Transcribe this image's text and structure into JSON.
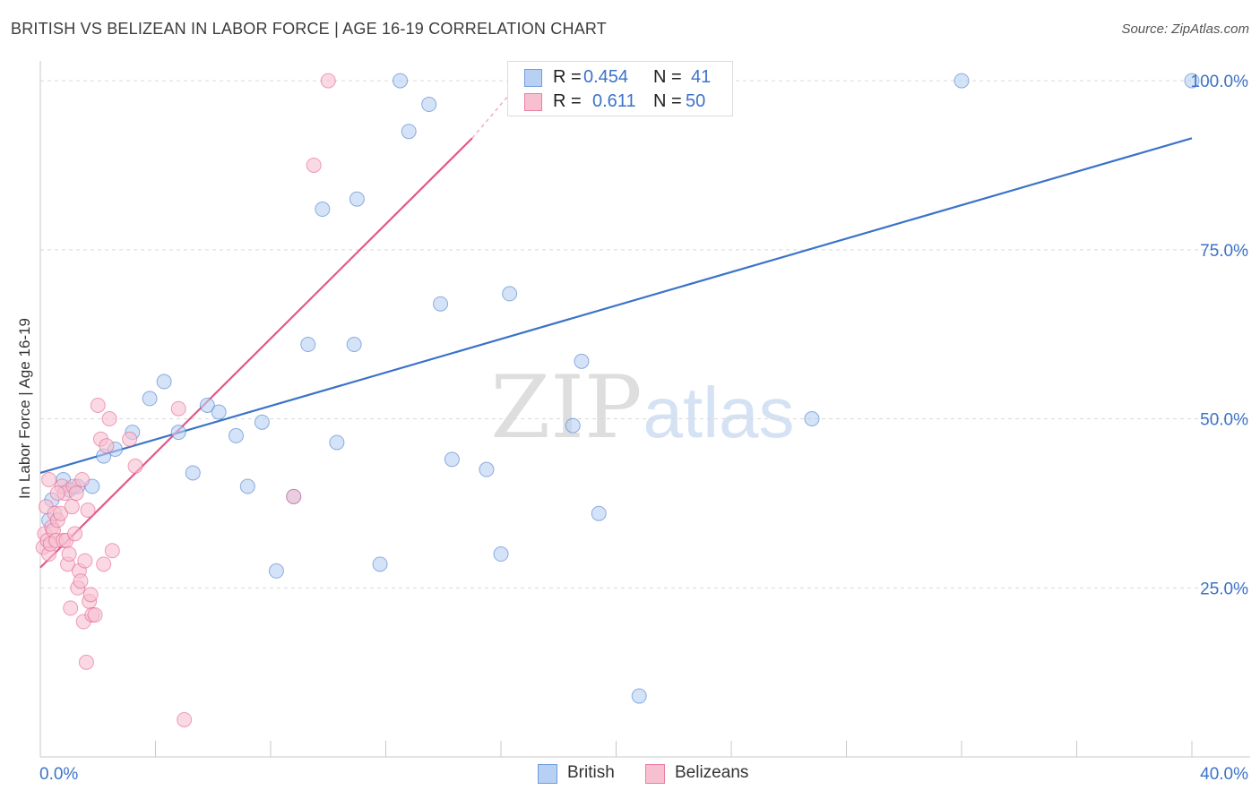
{
  "title": "BRITISH VS BELIZEAN IN LABOR FORCE | AGE 16-19 CORRELATION CHART",
  "source": "Source: ZipAtlas.com",
  "watermark": {
    "zip": "ZIP",
    "atlas": "atlas"
  },
  "legend": {
    "r_label": "R =",
    "n_label": "N =",
    "rows": [
      {
        "r": "0.454",
        "n": "41",
        "fill": "#b8d0f2",
        "stroke": "#6f9de0"
      },
      {
        "r": "0.611",
        "n": "50",
        "fill": "#f7c0d1",
        "stroke": "#ea7fa2"
      }
    ]
  },
  "bottom_legend": [
    {
      "label": "British",
      "fill": "#b8d0f2",
      "stroke": "#6f9de0"
    },
    {
      "label": "Belizeans",
      "fill": "#f7c0d1",
      "stroke": "#ea7fa2"
    }
  ],
  "chart_data": {
    "type": "scatter",
    "title": "BRITISH VS BELIZEAN IN LABOR FORCE | AGE 16-19 CORRELATION CHART",
    "xlabel": "",
    "ylabel": "In Labor Force | Age 16-19",
    "xlim": [
      0,
      40
    ],
    "ylim": [
      0,
      102
    ],
    "x_tick_labels": [
      "0.0%",
      "40.0%"
    ],
    "y_ticks": [
      25,
      50,
      75,
      100
    ],
    "y_tick_labels": [
      "25.0%",
      "50.0%",
      "75.0%",
      "100.0%"
    ],
    "grid": true,
    "colors": {
      "british": "#3b73c8",
      "belizeans": "#e2588a",
      "tick_label": "#3b73c8"
    },
    "series": [
      {
        "name": "British",
        "color": "#3b73c8",
        "fill": "#b8d0f2",
        "points": [
          [
            0.4,
            38.0
          ],
          [
            0.8,
            41.0
          ],
          [
            1.3,
            40.0
          ],
          [
            1.8,
            40.0
          ],
          [
            2.2,
            44.5
          ],
          [
            3.2,
            48.0
          ],
          [
            3.8,
            53.0
          ],
          [
            4.3,
            55.5
          ],
          [
            4.8,
            48.0
          ],
          [
            5.3,
            42.0
          ],
          [
            5.8,
            52.0
          ],
          [
            6.2,
            51.0
          ],
          [
            6.8,
            47.5
          ],
          [
            7.2,
            40.0
          ],
          [
            7.7,
            49.5
          ],
          [
            8.2,
            27.5
          ],
          [
            8.8,
            38.5
          ],
          [
            9.3,
            61.0
          ],
          [
            9.8,
            81.0
          ],
          [
            10.3,
            46.5
          ],
          [
            10.9,
            61.0
          ],
          [
            11.0,
            82.5
          ],
          [
            11.8,
            28.5
          ],
          [
            12.5,
            100.0
          ],
          [
            12.8,
            92.5
          ],
          [
            13.5,
            96.5
          ],
          [
            13.9,
            67.0
          ],
          [
            14.3,
            44.0
          ],
          [
            15.5,
            42.5
          ],
          [
            16.0,
            30.0
          ],
          [
            16.3,
            68.5
          ],
          [
            18.5,
            49.0
          ],
          [
            18.8,
            58.5
          ],
          [
            19.4,
            36.0
          ],
          [
            20.8,
            9.0
          ],
          [
            26.8,
            50.0
          ],
          [
            32.0,
            100.0
          ],
          [
            40.0,
            100.0
          ],
          [
            0.3,
            35.0
          ],
          [
            1.0,
            39.5
          ],
          [
            2.6,
            45.5
          ]
        ],
        "trend": {
          "x0": 0,
          "y0": 42.0,
          "x1": 40,
          "y1": 91.5
        }
      },
      {
        "name": "Belizeans",
        "color": "#e2588a",
        "fill": "#f7c0d1",
        "points": [
          [
            0.1,
            31.0
          ],
          [
            0.15,
            33.0
          ],
          [
            0.2,
            37.0
          ],
          [
            0.25,
            32.0
          ],
          [
            0.3,
            30.0
          ],
          [
            0.35,
            31.5
          ],
          [
            0.4,
            34.0
          ],
          [
            0.45,
            33.5
          ],
          [
            0.5,
            36.0
          ],
          [
            0.55,
            32.0
          ],
          [
            0.6,
            35.0
          ],
          [
            0.7,
            36.0
          ],
          [
            0.75,
            40.0
          ],
          [
            0.8,
            32.0
          ],
          [
            0.85,
            39.0
          ],
          [
            0.9,
            32.0
          ],
          [
            0.95,
            28.5
          ],
          [
            1.0,
            30.0
          ],
          [
            1.05,
            22.0
          ],
          [
            1.1,
            37.0
          ],
          [
            1.15,
            40.0
          ],
          [
            1.2,
            33.0
          ],
          [
            1.25,
            39.0
          ],
          [
            1.3,
            25.0
          ],
          [
            1.35,
            27.5
          ],
          [
            1.4,
            26.0
          ],
          [
            1.45,
            41.0
          ],
          [
            1.5,
            20.0
          ],
          [
            1.55,
            29.0
          ],
          [
            1.6,
            14.0
          ],
          [
            1.7,
            23.0
          ],
          [
            1.75,
            24.0
          ],
          [
            1.8,
            21.0
          ],
          [
            1.9,
            21.0
          ],
          [
            2.0,
            52.0
          ],
          [
            2.1,
            47.0
          ],
          [
            2.2,
            28.5
          ],
          [
            2.3,
            46.0
          ],
          [
            2.4,
            50.0
          ],
          [
            2.5,
            30.5
          ],
          [
            3.1,
            47.0
          ],
          [
            3.3,
            43.0
          ],
          [
            4.8,
            51.5
          ],
          [
            5.0,
            5.5
          ],
          [
            8.8,
            38.5
          ],
          [
            9.5,
            87.5
          ],
          [
            10.0,
            100.0
          ],
          [
            0.3,
            41.0
          ],
          [
            0.6,
            39.0
          ],
          [
            1.65,
            36.5
          ]
        ],
        "trend": {
          "x0": 0,
          "y0": 28.0,
          "x1": 15.0,
          "y1": 91.5,
          "dash_x1": 16.5,
          "dash_y1": 99.0
        }
      }
    ]
  }
}
